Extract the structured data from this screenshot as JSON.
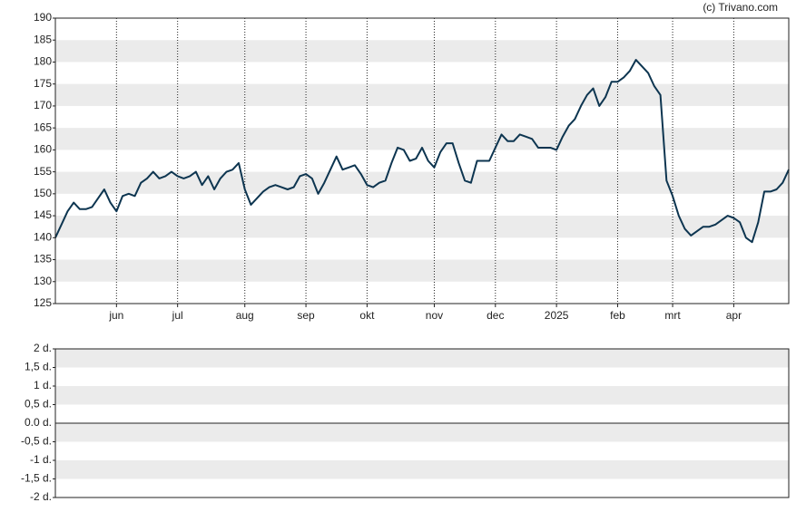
{
  "watermark": "(c) Trivano.com",
  "chart_data": [
    {
      "type": "line",
      "series": [
        {
          "color": "#0d3550",
          "values": [
            140,
            143,
            146,
            148,
            146.5,
            146.5,
            147,
            149,
            151,
            148,
            146,
            149.5,
            150,
            149.5,
            152.5,
            153.5,
            155,
            153.5,
            154,
            155,
            154,
            153.5,
            154,
            155,
            152,
            154,
            151,
            153.5,
            155,
            155.5,
            157,
            151,
            147.5,
            149,
            150.5,
            151.5,
            152,
            151.5,
            151,
            151.5,
            154,
            154.5,
            153.5,
            150,
            152.5,
            155.5,
            158.5,
            155.5,
            156,
            156.5,
            154.5,
            152,
            151.5,
            152.5,
            153,
            157,
            160.5,
            160,
            157.5,
            158,
            160.5,
            157.5,
            156,
            159.5,
            161.5,
            161.5,
            157,
            153,
            152.5,
            157.5,
            157.5,
            157.5,
            160.5,
            163.5,
            162,
            162,
            163.5,
            163,
            162.5,
            160.5,
            160.5,
            160.5,
            160,
            163,
            165.5,
            167,
            170,
            172.5,
            174,
            170,
            172,
            175.5,
            175.5,
            176.5,
            178,
            180.5,
            179,
            177.5,
            174.5,
            172.5,
            153,
            149.5,
            145,
            142,
            140.5,
            141.5,
            142.5,
            142.5,
            143,
            144,
            145,
            144.5,
            143.5,
            140,
            139,
            143.5,
            150.5,
            150.5,
            151,
            152.5,
            155.5
          ]
        }
      ],
      "xlim": [
        0,
        120
      ],
      "xticks": [
        {
          "value": 10,
          "label": "jun"
        },
        {
          "value": 20,
          "label": "jul"
        },
        {
          "value": 31,
          "label": "aug"
        },
        {
          "value": 41,
          "label": "sep"
        },
        {
          "value": 51,
          "label": "okt"
        },
        {
          "value": 62,
          "label": "nov"
        },
        {
          "value": 72,
          "label": "dec"
        },
        {
          "value": 82,
          "label": "2025"
        },
        {
          "value": 92,
          "label": "feb"
        },
        {
          "value": 101,
          "label": "mrt"
        },
        {
          "value": 111,
          "label": "apr"
        }
      ],
      "ylim": [
        125,
        190
      ],
      "yticks": [
        125,
        130,
        135,
        140,
        145,
        150,
        155,
        160,
        165,
        170,
        175,
        180,
        185,
        190
      ],
      "grid": true
    },
    {
      "type": "bar",
      "ylim": [
        -2,
        2
      ],
      "yticks": [
        {
          "value": 2,
          "label": "2 d."
        },
        {
          "value": 1.5,
          "label": "1,5 d."
        },
        {
          "value": 1,
          "label": "1 d."
        },
        {
          "value": 0.5,
          "label": "0,5 d."
        },
        {
          "value": 0,
          "label": "0.0 d."
        },
        {
          "value": -0.5,
          "label": "-0,5 d."
        },
        {
          "value": -1,
          "label": "-1 d."
        },
        {
          "value": -1.5,
          "label": "-1,5 d."
        },
        {
          "value": -2,
          "label": "-2 d."
        }
      ]
    }
  ]
}
